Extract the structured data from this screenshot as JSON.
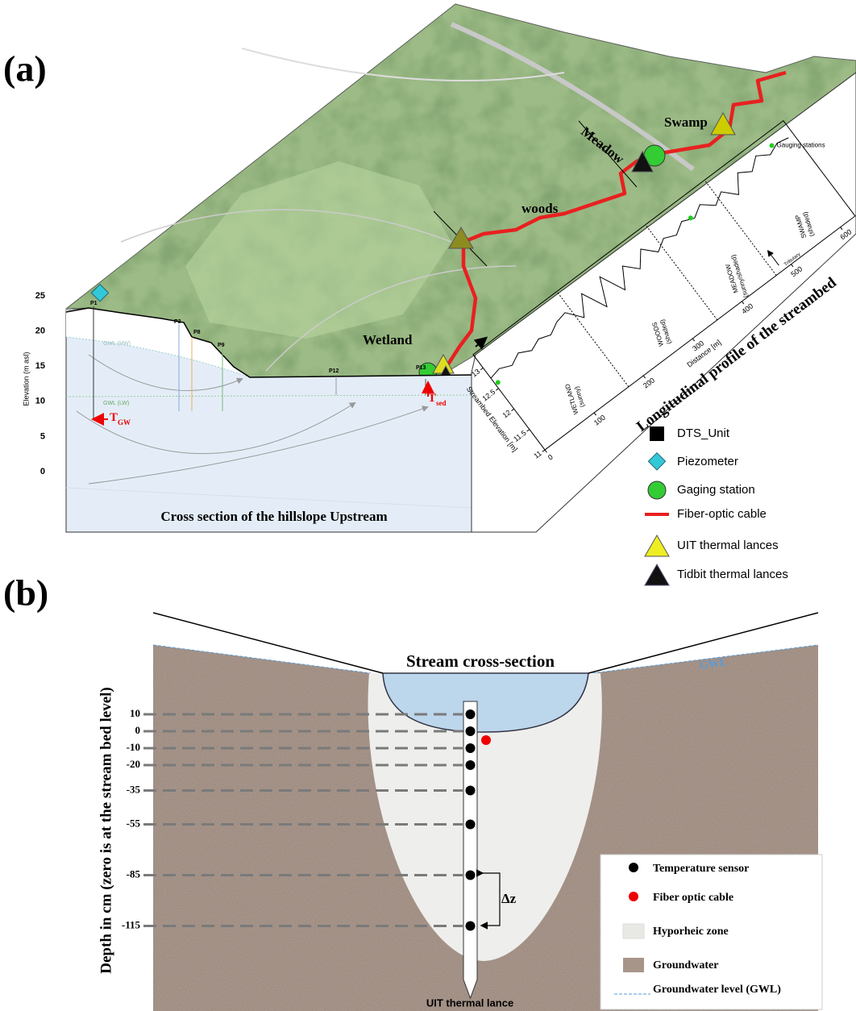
{
  "panel_a": {
    "label": "(a)",
    "map_labels": {
      "swamp": "Swamp",
      "meadow": "Meadow",
      "woods": "woods",
      "wetland": "Wetland"
    },
    "cross_section": {
      "title": "Cross section of the hillslope Upstream",
      "y_label": "Elevation (m asl)",
      "yticks": [
        0,
        5,
        10,
        15,
        20,
        25
      ],
      "wells": [
        "P1",
        "P3",
        "P8",
        "P9",
        "P12",
        "P13"
      ],
      "gwl_hw": "GWL (HW)",
      "gwl_lw": "GWL (LW)",
      "t_gw": {
        "main": "T",
        "sub": "GW"
      },
      "t_sed": {
        "main": "T",
        "sub": "sed"
      }
    },
    "profile": {
      "type": "line",
      "title": "Longitudinal profile of the streambed",
      "x_label": "Distance [m]",
      "y_label": "Streambed Elevation [m]",
      "color": "#000000",
      "x": [
        0,
        20,
        40,
        60,
        80,
        100,
        120,
        140,
        160,
        180,
        200,
        220,
        240,
        260,
        280,
        300,
        320,
        340,
        360,
        380,
        400,
        420,
        440,
        460,
        480,
        500,
        520,
        540,
        560,
        580,
        600,
        620
      ],
      "values": [
        12.75,
        12.8,
        12.7,
        12.82,
        12.7,
        12.8,
        12.72,
        12.85,
        12.9,
        12.6,
        13.0,
        12.5,
        13.05,
        12.55,
        12.95,
        12.7,
        13.0,
        12.75,
        12.9,
        12.8,
        12.95,
        12.85,
        13.0,
        12.8,
        12.95,
        12.7,
        13.05,
        12.9,
        13.1,
        12.95,
        13.05,
        13.0
      ],
      "xlim": [
        0,
        630
      ],
      "ylim": [
        11,
        13.2
      ],
      "xticks": [
        0,
        100,
        200,
        300,
        400,
        500,
        600
      ],
      "yticks": [
        11,
        11.5,
        12,
        12.5,
        13
      ],
      "zone_boundaries": [
        170,
        350,
        470
      ],
      "zones": [
        {
          "name": "WETLAND",
          "condition": "(sunny)"
        },
        {
          "name": "WOODS",
          "condition": "(shaded)"
        },
        {
          "name": "MEADOW",
          "condition": "(sunny/shaded)"
        },
        {
          "name": "SWAMP",
          "condition": "(shaded)"
        }
      ],
      "tributary": "Tributary",
      "gauging_label": "Gauging stations",
      "gauging_stations": {
        "x": [
          5,
          415
        ],
        "values": [
          12.6,
          12.9
        ],
        "color": "#22cc22"
      }
    },
    "legend": [
      "DTS_Unit",
      "Piezometer",
      "Gaging station",
      "Fiber-optic cable",
      "UIT thermal lances",
      "Tidbit thermal lances"
    ]
  },
  "panel_b": {
    "label": "(b)",
    "title": "Stream cross-section",
    "gwl": "GWL",
    "y_label": "Depth in cm (zero is at the stream bed level)",
    "depths": [
      10,
      0,
      -10,
      -20,
      -35,
      -55,
      -85,
      -115
    ],
    "delta": "Δz",
    "lance": "UIT thermal lance",
    "legend": [
      "Temperature sensor",
      "Fiber optic cable",
      "Hyporheic zone",
      "Groundwater",
      "Groundwater level (GWL)"
    ]
  }
}
